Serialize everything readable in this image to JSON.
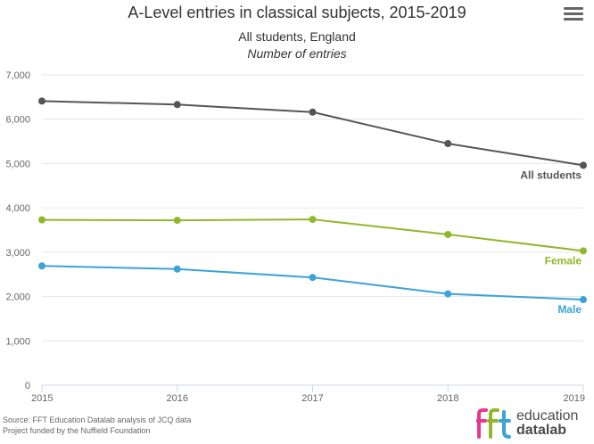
{
  "chart_data": {
    "type": "line",
    "title": "A-Level entries in classical subjects, 2015-2019",
    "subtitle": "All students, England",
    "subtitle2": "Number of entries",
    "x": [
      "2015",
      "2016",
      "2017",
      "2018",
      "2019"
    ],
    "y_ticks": [
      "0",
      "1,000",
      "2,000",
      "3,000",
      "4,000",
      "5,000",
      "6,000",
      "7,000"
    ],
    "ylim": [
      0,
      7000
    ],
    "grid": true,
    "legend": "end-of-line labels",
    "series": [
      {
        "name": "All students",
        "color": "#555555",
        "values": [
          6410,
          6330,
          6160,
          5450,
          4960
        ]
      },
      {
        "name": "Female",
        "color": "#8fb82a",
        "values": [
          3730,
          3720,
          3740,
          3400,
          3030
        ]
      },
      {
        "name": "Male",
        "color": "#3aa3d8",
        "values": [
          2690,
          2620,
          2430,
          2060,
          1930
        ]
      }
    ]
  },
  "menu": {
    "icon": "hamburger-menu-icon"
  },
  "credits": {
    "line1": "Source: FFT Education Datalab analysis of JCQ data",
    "line2": "Project funded by the Nuffield Foundation"
  },
  "logo": {
    "word1": "education",
    "word2": "datalab",
    "colors": [
      "#e8368f",
      "#8fb82a",
      "#3aa3d8"
    ]
  }
}
